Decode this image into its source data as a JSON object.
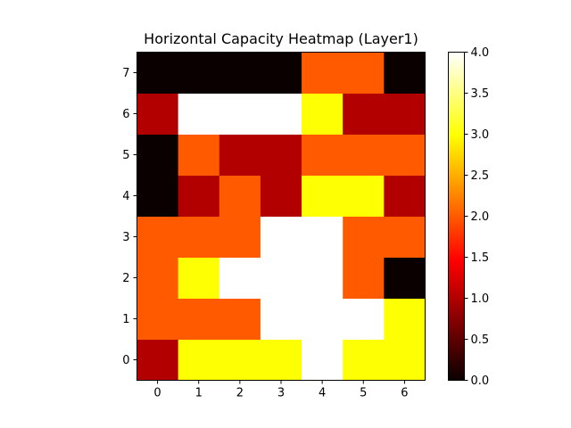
{
  "chart_data": {
    "type": "heatmap",
    "title": "Horizontal Capacity Heatmap (Layer1)",
    "xlabel": "",
    "ylabel": "",
    "x": [
      0,
      1,
      2,
      3,
      4,
      5,
      6
    ],
    "y": [
      0,
      1,
      2,
      3,
      4,
      5,
      6,
      7
    ],
    "x_tick_labels": [
      "0",
      "1",
      "2",
      "3",
      "4",
      "5",
      "6"
    ],
    "y_tick_labels": [
      "0",
      "1",
      "2",
      "3",
      "4",
      "5",
      "6",
      "7"
    ],
    "values": [
      [
        1,
        3,
        3,
        3,
        4,
        3,
        3
      ],
      [
        2,
        2,
        2,
        4,
        4,
        4,
        3
      ],
      [
        2,
        3,
        4,
        4,
        4,
        2,
        0
      ],
      [
        2,
        2,
        2,
        4,
        4,
        2,
        2
      ],
      [
        0,
        1,
        2,
        1,
        3,
        3,
        1
      ],
      [
        0,
        2,
        1,
        1,
        2,
        2,
        2
      ],
      [
        1,
        4,
        4,
        4,
        3,
        1,
        1
      ],
      [
        0,
        0,
        0,
        0,
        2,
        2,
        0
      ]
    ],
    "colormap": "hot",
    "vmin": 0.0,
    "vmax": 4.0,
    "colorbar_ticks": [
      "0.0",
      "0.5",
      "1.0",
      "1.5",
      "2.0",
      "2.5",
      "3.0",
      "3.5",
      "4.0"
    ],
    "grid": false
  }
}
